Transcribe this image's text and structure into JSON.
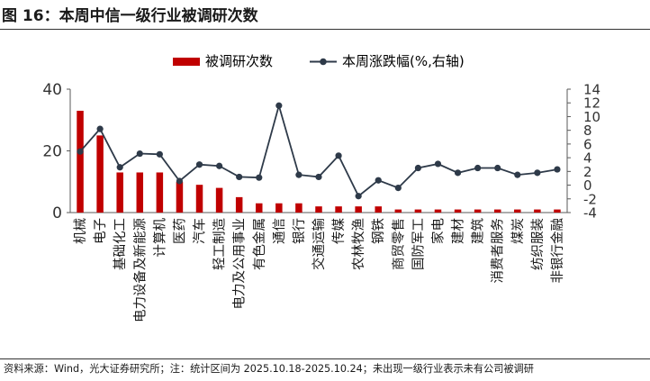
{
  "figure": {
    "title": "图 16：本周中信一级行业被调研次数",
    "source": "资料来源：Wind，光大证券研究所；注：统计区间为 2025.10.18-2025.10.24；未出现一级行业表示未有公司被调研"
  },
  "colors": {
    "bar": "#c00000",
    "line": "#2e3a49",
    "axis": "#595959"
  },
  "chart_data": {
    "type": "bar+line",
    "title": "本周中信一级行业被调研次数",
    "categories": [
      "机械",
      "电子",
      "基础化工",
      "电力设备及新能源",
      "计算机",
      "医药",
      "汽车",
      "轻工制造",
      "电力及公用事业",
      "有色金属",
      "通信",
      "银行",
      "交通运输",
      "传媒",
      "农林牧渔",
      "钢铁",
      "商贸零售",
      "国防军工",
      "家电",
      "建材",
      "建筑",
      "消费者服务",
      "煤炭",
      "纺织服装",
      "非银行金融"
    ],
    "series": [
      {
        "name": "被调研次数",
        "type": "bar",
        "axis": "left",
        "values": [
          33,
          25,
          13,
          13,
          13,
          10,
          9,
          8,
          5,
          3,
          3,
          3,
          2,
          2,
          2,
          2,
          1,
          1,
          1,
          1,
          1,
          1,
          1,
          1,
          1
        ]
      },
      {
        "name": "本周涨跌幅(%,右轴)",
        "type": "line",
        "axis": "right",
        "values": [
          4.9,
          8.2,
          2.6,
          4.6,
          4.5,
          0.6,
          3.0,
          2.8,
          1.2,
          1.1,
          11.6,
          1.5,
          1.2,
          4.3,
          -1.6,
          0.7,
          -0.4,
          2.5,
          3.1,
          1.8,
          2.5,
          2.5,
          1.5,
          1.8,
          2.3
        ]
      }
    ],
    "left_axis": {
      "min": 0,
      "max": 40,
      "ticks": [
        0,
        20,
        40
      ]
    },
    "right_axis": {
      "min": -4,
      "max": 14,
      "ticks": [
        -4,
        -2,
        0,
        2,
        4,
        6,
        8,
        10,
        12,
        14
      ]
    },
    "legend": {
      "position": "top-center",
      "labels": [
        "被调研次数",
        "本周涨跌幅(%,右轴)"
      ]
    }
  }
}
